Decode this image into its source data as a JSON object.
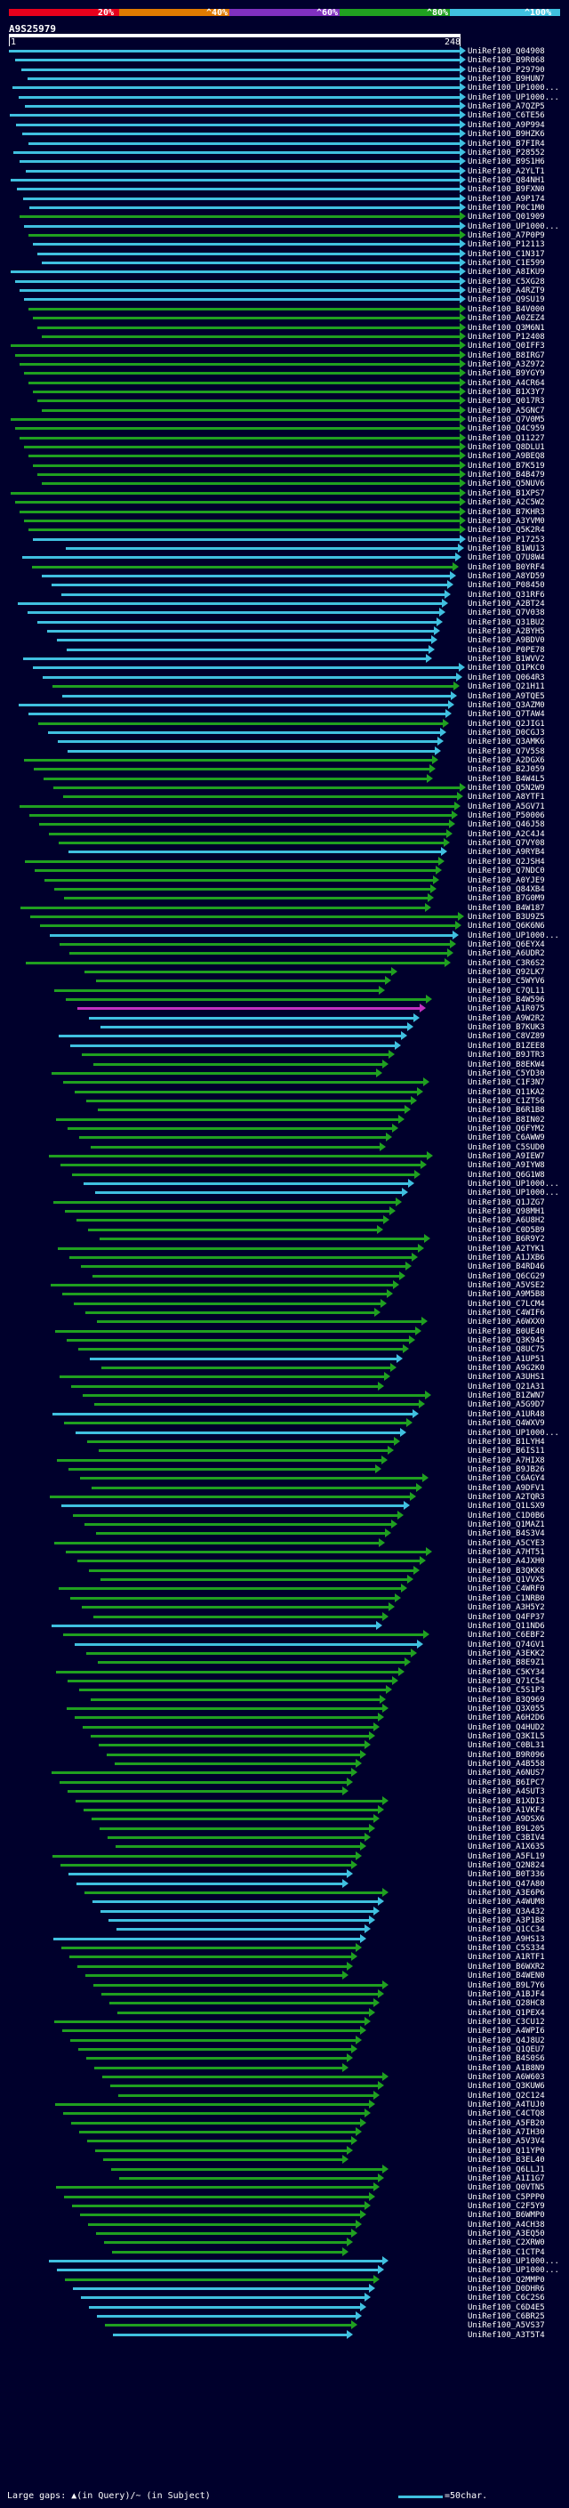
{
  "legend": {
    "labels": [
      "20%",
      "^40%",
      "^60%",
      "^80%",
      "^100%"
    ],
    "colors": [
      "#e8001c",
      "#e07a00",
      "#8030c0",
      "#20a020",
      "#40c0e0"
    ]
  },
  "query": {
    "title": "A9S25979",
    "start": "1",
    "end": "248"
  },
  "footer": {
    "gaps_text": "Large gaps: ▲(in Query)/~ (in Subject)",
    "scale_text": "=50char."
  },
  "hits": [
    {
      "label": "UniRef100_Q04908",
      "color": "#40c0e0"
    },
    {
      "label": "UniRef100_B9R068",
      "color": "#40c0e0"
    },
    {
      "label": "UniRef100_P29790",
      "color": "#40c0e0"
    },
    {
      "label": "UniRef100_B9HUN7",
      "color": "#40c0e0"
    },
    {
      "label": "UniRef100_UP1000...",
      "color": "#40c0e0"
    },
    {
      "label": "UniRef100_UP1000...",
      "color": "#40c0e0"
    },
    {
      "label": "UniRef100_A7QZP5",
      "color": "#40c0e0"
    },
    {
      "label": "UniRef100_C6TE56",
      "color": "#40c0e0"
    },
    {
      "label": "UniRef100_A9P994",
      "color": "#40c0e0"
    },
    {
      "label": "UniRef100_B9HZK6",
      "color": "#40c0e0"
    },
    {
      "label": "UniRef100_B7FIR4",
      "color": "#40c0e0"
    },
    {
      "label": "UniRef100_P28552",
      "color": "#40c0e0"
    },
    {
      "label": "UniRef100_B9S1H6",
      "color": "#40c0e0"
    },
    {
      "label": "UniRef100_A2YLT1",
      "color": "#40c0e0"
    },
    {
      "label": "UniRef100_Q84NH1",
      "color": "#40c0e0"
    },
    {
      "label": "UniRef100_B9FXN0",
      "color": "#40c0e0"
    },
    {
      "label": "UniRef100_A9P174",
      "color": "#40c0e0"
    },
    {
      "label": "UniRef100_P0C1M0",
      "color": "#40c0e0"
    },
    {
      "label": "UniRef100_Q01909",
      "color": "#20a020"
    },
    {
      "label": "UniRef100_UP1000...",
      "color": "#40c0e0"
    },
    {
      "label": "UniRef100_A7P0P9",
      "color": "#20a020"
    },
    {
      "label": "UniRef100_P12113",
      "color": "#40c0e0"
    },
    {
      "label": "UniRef100_C1N317",
      "color": "#40c0e0"
    },
    {
      "label": "UniRef100_C1E599",
      "color": "#40c0e0"
    },
    {
      "label": "UniRef100_A8IKU9",
      "color": "#40c0e0"
    },
    {
      "label": "UniRef100_C5XG28",
      "color": "#40c0e0"
    },
    {
      "label": "UniRef100_A4RZT9",
      "color": "#40c0e0"
    },
    {
      "label": "UniRef100_Q9SU19",
      "color": "#40c0e0"
    },
    {
      "label": "UniRef100_B4V000",
      "color": "#20a020"
    },
    {
      "label": "UniRef100_A0ZEZ4",
      "color": "#20a020"
    },
    {
      "label": "UniRef100_Q3M6N1",
      "color": "#20a020"
    },
    {
      "label": "UniRef100_P12408",
      "color": "#20a020"
    },
    {
      "label": "UniRef100_Q0IFF3",
      "color": "#20a020"
    },
    {
      "label": "UniRef100_B8IRG7",
      "color": "#20a020"
    },
    {
      "label": "UniRef100_A3Z972",
      "color": "#20a020"
    },
    {
      "label": "UniRef100_B9YGY9",
      "color": "#20a020"
    },
    {
      "label": "UniRef100_A4CR64",
      "color": "#20a020"
    },
    {
      "label": "UniRef100_B1X3Y7",
      "color": "#20a020"
    },
    {
      "label": "UniRef100_Q017R3",
      "color": "#20a020"
    },
    {
      "label": "UniRef100_A5GNC7",
      "color": "#20a020"
    },
    {
      "label": "UniRef100_Q7V0M5",
      "color": "#20a020"
    },
    {
      "label": "UniRef100_Q4C959",
      "color": "#20a020"
    },
    {
      "label": "UniRef100_Q11227",
      "color": "#20a020"
    },
    {
      "label": "UniRef100_Q8DLU1",
      "color": "#20a020"
    },
    {
      "label": "UniRef100_A9BEQ8",
      "color": "#20a020"
    },
    {
      "label": "UniRef100_B7K519",
      "color": "#20a020"
    },
    {
      "label": "UniRef100_B4B479",
      "color": "#20a020"
    },
    {
      "label": "UniRef100_Q5NUV6",
      "color": "#20a020"
    },
    {
      "label": "UniRef100_B1XPS7",
      "color": "#20a020"
    },
    {
      "label": "UniRef100_A2C5W2",
      "color": "#20a020"
    },
    {
      "label": "UniRef100_B7KHR3",
      "color": "#20a020"
    },
    {
      "label": "UniRef100_A3YVM0",
      "color": "#20a020"
    },
    {
      "label": "UniRef100_Q5K2R4",
      "color": "#20a020"
    },
    {
      "label": "UniRef100_P17253",
      "color": "#40c0e0"
    },
    {
      "label": "UniRef100_B1WU13",
      "color": "#40c0e0"
    },
    {
      "label": "UniRef100_Q7U8W4",
      "color": "#40c0e0"
    },
    {
      "label": "UniRef100_B0YRF4",
      "color": "#20a020"
    },
    {
      "label": "UniRef100_A8YD59",
      "color": "#40c0e0"
    },
    {
      "label": "UniRef100_P08450",
      "color": "#40c0e0"
    },
    {
      "label": "UniRef100_Q31RF6",
      "color": "#40c0e0"
    },
    {
      "label": "UniRef100_A2BT24",
      "color": "#40c0e0"
    },
    {
      "label": "UniRef100_Q7V038",
      "color": "#40c0e0"
    },
    {
      "label": "UniRef100_Q31BU2",
      "color": "#40c0e0"
    },
    {
      "label": "UniRef100_A2BYH5",
      "color": "#40c0e0"
    },
    {
      "label": "UniRef100_A9BDV0",
      "color": "#40c0e0"
    },
    {
      "label": "UniRef100_P0PE78",
      "color": "#40c0e0"
    },
    {
      "label": "UniRef100_B1WVV2",
      "color": "#40c0e0"
    },
    {
      "label": "UniRef100_Q1PKC0",
      "color": "#40c0e0"
    },
    {
      "label": "UniRef100_Q064R3",
      "color": "#40c0e0"
    },
    {
      "label": "UniRef100_Q21H11",
      "color": "#20a020"
    },
    {
      "label": "UniRef100_A9TQE5",
      "color": "#40c0e0"
    },
    {
      "label": "UniRef100_Q3AZM0",
      "color": "#40c0e0"
    },
    {
      "label": "UniRef100_Q7TAW4",
      "color": "#40c0e0"
    },
    {
      "label": "UniRef100_Q2JIG1",
      "color": "#20a020"
    },
    {
      "label": "UniRef100_D0CGJ3",
      "color": "#40c0e0"
    },
    {
      "label": "UniRef100_Q3AMK6",
      "color": "#40c0e0"
    },
    {
      "label": "UniRef100_Q7V5S8",
      "color": "#40c0e0"
    },
    {
      "label": "UniRef100_A2DGX6",
      "color": "#20a020"
    },
    {
      "label": "UniRef100_B2J059",
      "color": "#20a020"
    },
    {
      "label": "UniRef100_B4W4L5",
      "color": "#20a020"
    },
    {
      "label": "UniRef100_Q5N2W9",
      "color": "#20a020"
    },
    {
      "label": "UniRef100_A8YTF1",
      "color": "#20a020"
    },
    {
      "label": "UniRef100_A5GV71",
      "color": "#20a020"
    },
    {
      "label": "UniRef100_P50006",
      "color": "#20a020"
    },
    {
      "label": "UniRef100_Q46J58",
      "color": "#20a020"
    },
    {
      "label": "UniRef100_A2C4J4",
      "color": "#20a020"
    },
    {
      "label": "UniRef100_Q7VY08",
      "color": "#20a020"
    },
    {
      "label": "UniRef100_A9RYB4",
      "color": "#40c0e0"
    },
    {
      "label": "UniRef100_Q2JSH4",
      "color": "#20a020"
    },
    {
      "label": "UniRef100_Q7NDC0",
      "color": "#20a020"
    },
    {
      "label": "UniRef100_A0YJE9",
      "color": "#20a020"
    },
    {
      "label": "UniRef100_Q84XB4",
      "color": "#20a020"
    },
    {
      "label": "UniRef100_B7G0M9",
      "color": "#20a020"
    },
    {
      "label": "UniRef100_B4W187",
      "color": "#20a020"
    },
    {
      "label": "UniRef100_B3U9Z5",
      "color": "#20a020"
    },
    {
      "label": "UniRef100_Q6K6N6",
      "color": "#20a020"
    },
    {
      "label": "UniRef100_UP1000...",
      "color": "#40c0e0"
    },
    {
      "label": "UniRef100_Q6EYX4",
      "color": "#20a020"
    },
    {
      "label": "UniRef100_A6UDR2",
      "color": "#20a020"
    },
    {
      "label": "UniRef100_C3R6S2",
      "color": "#20a020"
    },
    {
      "label": "UniRef100_Q92LK7",
      "color": "#20a020"
    },
    {
      "label": "UniRef100_C5WYV6",
      "color": "#20a020"
    },
    {
      "label": "UniRef100_C7QL11",
      "color": "#20a020"
    },
    {
      "label": "UniRef100_B4W596",
      "color": "#20a020"
    },
    {
      "label": "UniRef100_A1R075",
      "color": "#c030c0"
    },
    {
      "label": "UniRef100_A9W2R2",
      "color": "#40c0e0"
    },
    {
      "label": "UniRef100_B7KUK3",
      "color": "#40c0e0"
    },
    {
      "label": "UniRef100_C8VZ89",
      "color": "#40c0e0"
    },
    {
      "label": "UniRef100_B1ZEE8",
      "color": "#40c0e0"
    },
    {
      "label": "UniRef100_B9JTR3",
      "color": "#20a020"
    },
    {
      "label": "UniRef100_B8EKW4",
      "color": "#20a020"
    },
    {
      "label": "UniRef100_C5YD30",
      "color": "#20a020"
    },
    {
      "label": "UniRef100_C1F3N7",
      "color": "#20a020"
    },
    {
      "label": "UniRef100_Q11KA2",
      "color": "#20a020"
    },
    {
      "label": "UniRef100_C1ZTS6",
      "color": "#20a020"
    },
    {
      "label": "UniRef100_B6R1B8",
      "color": "#20a020"
    },
    {
      "label": "UniRef100_B8IN02",
      "color": "#20a020"
    },
    {
      "label": "UniRef100_Q6FYM2",
      "color": "#20a020"
    },
    {
      "label": "UniRef100_C6AWW9",
      "color": "#20a020"
    },
    {
      "label": "UniRef100_C5SUD0",
      "color": "#20a020"
    },
    {
      "label": "UniRef100_A9IEW7",
      "color": "#20a020"
    },
    {
      "label": "UniRef100_A9IYW8",
      "color": "#20a020"
    },
    {
      "label": "UniRef100_Q6G1W8",
      "color": "#20a020"
    },
    {
      "label": "UniRef100_UP1000...",
      "color": "#40c0e0"
    },
    {
      "label": "UniRef100_UP1000...",
      "color": "#40c0e0"
    },
    {
      "label": "UniRef100_Q1JZG7",
      "color": "#20a020"
    },
    {
      "label": "UniRef100_Q98MH1",
      "color": "#20a020"
    },
    {
      "label": "UniRef100_A6U8H2",
      "color": "#20a020"
    },
    {
      "label": "UniRef100_C0D5B9",
      "color": "#20a020"
    },
    {
      "label": "UniRef100_B6R9Y2",
      "color": "#20a020"
    },
    {
      "label": "UniRef100_A2TYK1",
      "color": "#20a020"
    },
    {
      "label": "UniRef100_A1JXB6",
      "color": "#20a020"
    },
    {
      "label": "UniRef100_B4RD46",
      "color": "#20a020"
    },
    {
      "label": "UniRef100_Q6CG29",
      "color": "#20a020"
    },
    {
      "label": "UniRef100_A5VSE2",
      "color": "#20a020"
    },
    {
      "label": "UniRef100_A9M5B8",
      "color": "#20a020"
    },
    {
      "label": "UniRef100_C7LCM4",
      "color": "#20a020"
    },
    {
      "label": "UniRef100_C4WIF6",
      "color": "#20a020"
    },
    {
      "label": "UniRef100_A6WXX0",
      "color": "#20a020"
    },
    {
      "label": "UniRef100_B0UE40",
      "color": "#20a020"
    },
    {
      "label": "UniRef100_Q3K945",
      "color": "#20a020"
    },
    {
      "label": "UniRef100_Q8UC75",
      "color": "#20a020"
    },
    {
      "label": "UniRef100_A1UP51",
      "color": "#40c0e0"
    },
    {
      "label": "UniRef100_A9G2K0",
      "color": "#20a020"
    },
    {
      "label": "UniRef100_A3UHS1",
      "color": "#20a020"
    },
    {
      "label": "UniRef100_Q21A31",
      "color": "#20a020"
    },
    {
      "label": "UniRef100_B1ZWN7",
      "color": "#20a020"
    },
    {
      "label": "UniRef100_A5G9D7",
      "color": "#20a020"
    },
    {
      "label": "UniRef100_A1UR48",
      "color": "#40c0e0"
    },
    {
      "label": "UniRef100_Q4WXV9",
      "color": "#20a020"
    },
    {
      "label": "UniRef100_UP1000...",
      "color": "#40c0e0"
    },
    {
      "label": "UniRef100_B1LYH4",
      "color": "#20a020"
    },
    {
      "label": "UniRef100_B6IS11",
      "color": "#20a020"
    },
    {
      "label": "UniRef100_A7HIX8",
      "color": "#20a020"
    },
    {
      "label": "UniRef100_B9JB26",
      "color": "#20a020"
    },
    {
      "label": "UniRef100_C6AGY4",
      "color": "#20a020"
    },
    {
      "label": "UniRef100_A9DFV1",
      "color": "#20a020"
    },
    {
      "label": "UniRef100_A2TQR3",
      "color": "#20a020"
    },
    {
      "label": "UniRef100_Q1LSX9",
      "color": "#40c0e0"
    },
    {
      "label": "UniRef100_C1D0B6",
      "color": "#20a020"
    },
    {
      "label": "UniRef100_Q1MAZ1",
      "color": "#20a020"
    },
    {
      "label": "UniRef100_B4S3V4",
      "color": "#20a020"
    },
    {
      "label": "UniRef100_A5CYE3",
      "color": "#20a020"
    },
    {
      "label": "UniRef100_A7HT51",
      "color": "#20a020"
    },
    {
      "label": "UniRef100_A4JXH0",
      "color": "#20a020"
    },
    {
      "label": "UniRef100_B3QKK8",
      "color": "#20a020"
    },
    {
      "label": "UniRef100_Q1VVX5",
      "color": "#20a020"
    },
    {
      "label": "UniRef100_C4WRF0",
      "color": "#20a020"
    },
    {
      "label": "UniRef100_C1NRB0",
      "color": "#20a020"
    },
    {
      "label": "UniRef100_A3H5Y2",
      "color": "#20a020"
    },
    {
      "label": "UniRef100_Q4FP37",
      "color": "#20a020"
    },
    {
      "label": "UniRef100_Q11ND6",
      "color": "#40c0e0"
    },
    {
      "label": "UniRef100_C6EBF2",
      "color": "#20a020"
    },
    {
      "label": "UniRef100_Q74GV1",
      "color": "#40c0e0"
    },
    {
      "label": "UniRef100_A3EKK2",
      "color": "#20a020"
    },
    {
      "label": "UniRef100_B8E9Z1",
      "color": "#20a020"
    },
    {
      "label": "UniRef100_C5KY34",
      "color": "#20a020"
    },
    {
      "label": "UniRef100_Q71C54",
      "color": "#20a020"
    },
    {
      "label": "UniRef100_C5S1P3",
      "color": "#20a020"
    },
    {
      "label": "UniRef100_B3Q969",
      "color": "#20a020"
    },
    {
      "label": "UniRef100_Q3X055",
      "color": "#20a020"
    },
    {
      "label": "UniRef100_A6H2D6",
      "color": "#20a020"
    },
    {
      "label": "UniRef100_Q4HUD2",
      "color": "#20a020"
    },
    {
      "label": "UniRef100_Q3KIL5",
      "color": "#20a020"
    },
    {
      "label": "UniRef100_C0BL31",
      "color": "#20a020"
    },
    {
      "label": "UniRef100_B9R096",
      "color": "#20a020"
    },
    {
      "label": "UniRef100_A4B558",
      "color": "#20a020"
    },
    {
      "label": "UniRef100_A6NUS7",
      "color": "#20a020"
    },
    {
      "label": "UniRef100_B6IPC7",
      "color": "#20a020"
    },
    {
      "label": "UniRef100_A4SUT3",
      "color": "#20a020"
    },
    {
      "label": "UniRef100_B1XDI3",
      "color": "#20a020"
    },
    {
      "label": "UniRef100_A1VKF4",
      "color": "#20a020"
    },
    {
      "label": "UniRef100_A9DSX6",
      "color": "#20a020"
    },
    {
      "label": "UniRef100_B9L205",
      "color": "#20a020"
    },
    {
      "label": "UniRef100_C3BIV4",
      "color": "#20a020"
    },
    {
      "label": "UniRef100_A1X635",
      "color": "#20a020"
    },
    {
      "label": "UniRef100_A5FL19",
      "color": "#20a020"
    },
    {
      "label": "UniRef100_Q2N824",
      "color": "#20a020"
    },
    {
      "label": "UniRef100_B0T336",
      "color": "#40c0e0"
    },
    {
      "label": "UniRef100_Q47A80",
      "color": "#40c0e0"
    },
    {
      "label": "UniRef100_A3E6P6",
      "color": "#20a020"
    },
    {
      "label": "UniRef100_A4WUM8",
      "color": "#40c0e0"
    },
    {
      "label": "UniRef100_Q3A432",
      "color": "#40c0e0"
    },
    {
      "label": "UniRef100_A3P1B8",
      "color": "#40c0e0"
    },
    {
      "label": "UniRef100_Q1CC34",
      "color": "#40c0e0"
    },
    {
      "label": "UniRef100_A9HS13",
      "color": "#40c0e0"
    },
    {
      "label": "UniRef100_C5S334",
      "color": "#20a020"
    },
    {
      "label": "UniRef100_A1RTF1",
      "color": "#20a020"
    },
    {
      "label": "UniRef100_B6WXR2",
      "color": "#20a020"
    },
    {
      "label": "UniRef100_B4WEN0",
      "color": "#20a020"
    },
    {
      "label": "UniRef100_B9L7Y6",
      "color": "#20a020"
    },
    {
      "label": "UniRef100_A1BJF4",
      "color": "#20a020"
    },
    {
      "label": "UniRef100_Q28HC8",
      "color": "#20a020"
    },
    {
      "label": "UniRef100_Q1PEX4",
      "color": "#20a020"
    },
    {
      "label": "UniRef100_C3CU12",
      "color": "#20a020"
    },
    {
      "label": "UniRef100_A4WPI6",
      "color": "#20a020"
    },
    {
      "label": "UniRef100_Q4J8U2",
      "color": "#20a020"
    },
    {
      "label": "UniRef100_Q1QEU7",
      "color": "#20a020"
    },
    {
      "label": "UniRef100_B4S0S6",
      "color": "#20a020"
    },
    {
      "label": "UniRef100_A1B8N9",
      "color": "#20a020"
    },
    {
      "label": "UniRef100_A6W603",
      "color": "#20a020"
    },
    {
      "label": "UniRef100_Q3KUW6",
      "color": "#20a020"
    },
    {
      "label": "UniRef100_Q2C124",
      "color": "#20a020"
    },
    {
      "label": "UniRef100_A4TUJ0",
      "color": "#20a020"
    },
    {
      "label": "UniRef100_C4CTQ8",
      "color": "#20a020"
    },
    {
      "label": "UniRef100_A5FB20",
      "color": "#20a020"
    },
    {
      "label": "UniRef100_A7IH30",
      "color": "#20a020"
    },
    {
      "label": "UniRef100_A5V3V4",
      "color": "#20a020"
    },
    {
      "label": "UniRef100_Q11YP0",
      "color": "#20a020"
    },
    {
      "label": "UniRef100_B3EL40",
      "color": "#20a020"
    },
    {
      "label": "UniRef100_Q6LLJ1",
      "color": "#20a020"
    },
    {
      "label": "UniRef100_A1I1G7",
      "color": "#20a020"
    },
    {
      "label": "UniRef100_Q0VTN5",
      "color": "#20a020"
    },
    {
      "label": "UniRef100_C5PPP0",
      "color": "#20a020"
    },
    {
      "label": "UniRef100_C2F5Y9",
      "color": "#20a020"
    },
    {
      "label": "UniRef100_B6WMP0",
      "color": "#20a020"
    },
    {
      "label": "UniRef100_A4CH38",
      "color": "#20a020"
    },
    {
      "label": "UniRef100_A3EQ50",
      "color": "#20a020"
    },
    {
      "label": "UniRef100_C2XRW0",
      "color": "#20a020"
    },
    {
      "label": "UniRef100_C1CTP4",
      "color": "#20a020"
    },
    {
      "label": "UniRef100_UP1000...",
      "color": "#40c0e0"
    },
    {
      "label": "UniRef100_UP1000...",
      "color": "#40c0e0"
    },
    {
      "label": "UniRef100_Q2MMP0",
      "color": "#20a020"
    },
    {
      "label": "UniRef100_D0DHR6",
      "color": "#40c0e0"
    },
    {
      "label": "UniRef100_C6C2S6",
      "color": "#40c0e0"
    },
    {
      "label": "UniRef100_C6D4E5",
      "color": "#40c0e0"
    },
    {
      "label": "UniRef100_C6BR25",
      "color": "#40c0e0"
    },
    {
      "label": "UniRef100_A5VS37",
      "color": "#20a020"
    },
    {
      "label": "UniRef100_A3T5T4",
      "color": "#40c0e0"
    }
  ]
}
